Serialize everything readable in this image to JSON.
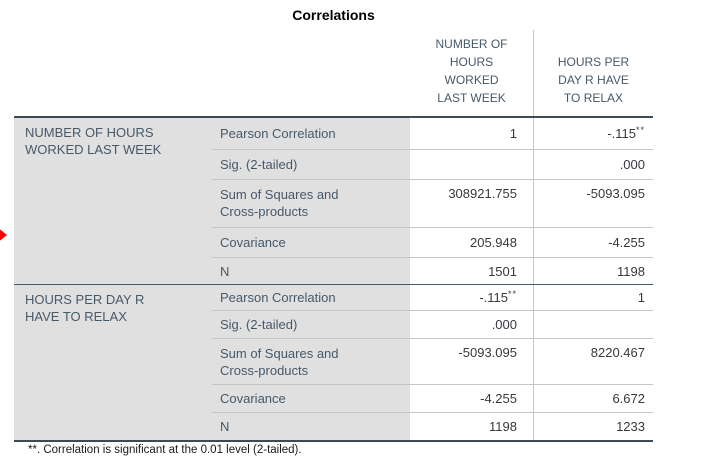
{
  "title": "Correlations",
  "table": {
    "col_headers": [
      "NUMBER OF\nHOURS\nWORKED\nLAST WEEK",
      "HOURS PER\nDAY R HAVE\nTO RELAX"
    ],
    "groups": [
      {
        "label": "NUMBER OF HOURS\nWORKED LAST WEEK",
        "rows": [
          {
            "label": "Pearson Correlation",
            "c1": "1",
            "c1sup": "",
            "c2": "-.115",
            "c2sup": "**"
          },
          {
            "label": "Sig. (2-tailed)",
            "c1": "",
            "c1sup": "",
            "c2": ".000",
            "c2sup": ""
          },
          {
            "label": "Sum of Squares and\nCross-products",
            "c1": "308921.755",
            "c1sup": "",
            "c2": "-5093.095",
            "c2sup": ""
          },
          {
            "label": "Covariance",
            "c1": "205.948",
            "c1sup": "",
            "c2": "-4.255",
            "c2sup": ""
          },
          {
            "label": "N",
            "c1": "1501",
            "c1sup": "",
            "c2": "1198",
            "c2sup": ""
          }
        ]
      },
      {
        "label": "HOURS PER DAY R\nHAVE TO RELAX",
        "rows": [
          {
            "label": "Pearson Correlation",
            "c1": "-.115",
            "c1sup": "**",
            "c2": "1",
            "c2sup": ""
          },
          {
            "label": "Sig. (2-tailed)",
            "c1": ".000",
            "c1sup": "",
            "c2": "",
            "c2sup": ""
          },
          {
            "label": "Sum of Squares and\nCross-products",
            "c1": "-5093.095",
            "c1sup": "",
            "c2": "8220.467",
            "c2sup": ""
          },
          {
            "label": "Covariance",
            "c1": "-4.255",
            "c1sup": "",
            "c2": "6.672",
            "c2sup": ""
          },
          {
            "label": "N",
            "c1": "1198",
            "c1sup": "",
            "c2": "1233",
            "c2sup": ""
          }
        ]
      }
    ]
  },
  "footnote": "**. Correlation is significant at the 0.01 level (2-tailed).",
  "colors": {
    "selection_arrow": "#ff0000",
    "label_text": "#465969",
    "heavy_border": "#3c4b55",
    "light_border": "#c6c6c6",
    "row_label_bg": "#e0e0e0",
    "value_text": "#36393d"
  }
}
